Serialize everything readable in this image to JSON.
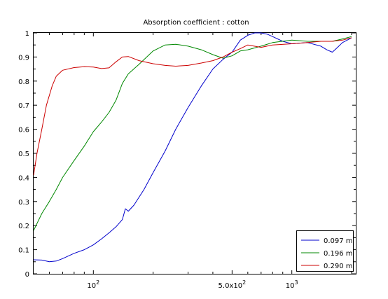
{
  "chart_data": {
    "type": "line",
    "title": "Absorption coefficient : cotton",
    "xlabel": "",
    "ylabel": "",
    "x_scale": "log",
    "xlim": [
      50,
      2100
    ],
    "ylim": [
      0,
      1
    ],
    "x_ticks": [
      {
        "value": 100,
        "base": "10",
        "exp": "2"
      },
      {
        "value": 500,
        "mantissa": "5.0x10",
        "exp": "2"
      },
      {
        "value": 1000,
        "base": "10",
        "exp": "3"
      }
    ],
    "y_ticks": [
      "0",
      "0.1",
      "0.2",
      "0.3",
      "0.4",
      "0.5",
      "0.6",
      "0.7",
      "0.8",
      "0.9",
      "1"
    ],
    "grid": false,
    "legend_position": "bottom-right",
    "series": [
      {
        "name": "0.097 m",
        "color": "#0000cc",
        "x": [
          50,
          55,
          60,
          65,
          70,
          80,
          90,
          100,
          110,
          120,
          130,
          140,
          145,
          150,
          160,
          180,
          200,
          230,
          260,
          300,
          350,
          400,
          450,
          500,
          550,
          600,
          650,
          700,
          750,
          800,
          900,
          1000,
          1200,
          1400,
          1500,
          1600,
          1700,
          1800,
          1900,
          2000
        ],
        "y": [
          0.058,
          0.057,
          0.05,
          0.053,
          0.063,
          0.085,
          0.1,
          0.12,
          0.145,
          0.17,
          0.195,
          0.225,
          0.27,
          0.26,
          0.285,
          0.35,
          0.42,
          0.51,
          0.6,
          0.69,
          0.78,
          0.85,
          0.89,
          0.92,
          0.97,
          0.99,
          1.0,
          1.0,
          0.995,
          0.985,
          0.965,
          0.955,
          0.96,
          0.945,
          0.93,
          0.92,
          0.94,
          0.96,
          0.97,
          0.98
        ]
      },
      {
        "name": "0.196 m",
        "color": "#008800",
        "x": [
          50,
          55,
          60,
          65,
          70,
          80,
          90,
          100,
          110,
          120,
          130,
          140,
          150,
          170,
          200,
          230,
          260,
          300,
          350,
          400,
          450,
          500,
          550,
          600,
          700,
          800,
          1000,
          1200,
          1400,
          1600,
          1800,
          2000
        ],
        "y": [
          0.18,
          0.25,
          0.3,
          0.35,
          0.4,
          0.47,
          0.53,
          0.59,
          0.63,
          0.67,
          0.72,
          0.79,
          0.83,
          0.87,
          0.925,
          0.95,
          0.953,
          0.945,
          0.93,
          0.91,
          0.895,
          0.905,
          0.925,
          0.93,
          0.945,
          0.96,
          0.97,
          0.965,
          0.965,
          0.965,
          0.975,
          0.985
        ]
      },
      {
        "name": "0.290 m",
        "color": "#cc0000",
        "x": [
          50,
          52,
          55,
          58,
          62,
          65,
          70,
          80,
          90,
          100,
          110,
          120,
          130,
          140,
          150,
          170,
          200,
          230,
          260,
          300,
          350,
          400,
          450,
          500,
          550,
          600,
          700,
          800,
          1000,
          1200,
          1400,
          1600,
          1800,
          2000
        ],
        "y": [
          0.41,
          0.5,
          0.6,
          0.7,
          0.78,
          0.82,
          0.845,
          0.856,
          0.86,
          0.858,
          0.852,
          0.855,
          0.88,
          0.9,
          0.902,
          0.885,
          0.872,
          0.865,
          0.862,
          0.865,
          0.875,
          0.885,
          0.9,
          0.92,
          0.935,
          0.95,
          0.94,
          0.95,
          0.955,
          0.96,
          0.965,
          0.965,
          0.97,
          0.98
        ]
      }
    ]
  }
}
